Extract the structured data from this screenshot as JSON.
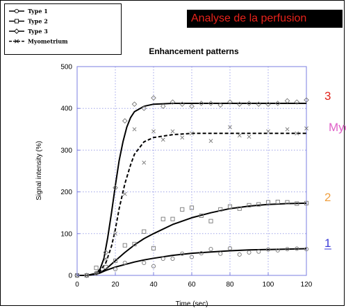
{
  "banner": {
    "text": "Analyse de la perfusion",
    "color": "#e8221b"
  },
  "chart_data": {
    "type": "line",
    "title": "Enhancement patterns",
    "xlabel": "Time (sec)",
    "ylabel": "Signal intensity (%)",
    "xlim": [
      0,
      120
    ],
    "ylim": [
      0,
      500
    ],
    "xticks": [
      0,
      20,
      40,
      60,
      80,
      100,
      120
    ],
    "yticks": [
      0,
      100,
      200,
      300,
      400,
      500
    ],
    "grid": true,
    "grid_color": "#9fa3e8",
    "legend_position": "top-left",
    "series": [
      {
        "name": "Type 1",
        "marker": "circle",
        "annotation": "1",
        "annotation_color": "#3a3ad8",
        "curve_x": [
          0,
          5,
          10,
          12,
          15,
          20,
          25,
          30,
          35,
          40,
          50,
          60,
          70,
          80,
          90,
          100,
          110,
          120
        ],
        "curve_y": [
          0,
          0,
          3,
          6,
          12,
          20,
          26,
          32,
          37,
          41,
          48,
          53,
          56,
          59,
          61,
          62,
          63,
          64
        ],
        "points_x": [
          0,
          5,
          10,
          20,
          25,
          35,
          40,
          45,
          50,
          55,
          60,
          65,
          70,
          75,
          80,
          85,
          90,
          95,
          100,
          105,
          110,
          115,
          120
        ],
        "points_y": [
          0,
          0,
          5,
          15,
          30,
          30,
          22,
          40,
          40,
          52,
          44,
          53,
          63,
          52,
          65,
          50,
          55,
          57,
          62,
          60,
          63,
          64,
          63
        ]
      },
      {
        "name": "Type 2",
        "marker": "square",
        "annotation": "2",
        "annotation_color": "#f0a040",
        "curve_x": [
          0,
          5,
          10,
          12,
          15,
          20,
          25,
          30,
          35,
          40,
          50,
          60,
          70,
          80,
          90,
          100,
          110,
          120
        ],
        "curve_y": [
          0,
          0,
          3,
          6,
          15,
          35,
          55,
          73,
          88,
          100,
          122,
          138,
          150,
          160,
          166,
          170,
          172,
          173
        ],
        "points_x": [
          0,
          5,
          10,
          15,
          20,
          25,
          30,
          35,
          40,
          45,
          50,
          55,
          60,
          65,
          70,
          75,
          80,
          85,
          90,
          95,
          100,
          105,
          110,
          115,
          120
        ],
        "points_y": [
          0,
          0,
          18,
          20,
          35,
          72,
          75,
          105,
          65,
          135,
          135,
          158,
          162,
          143,
          130,
          158,
          165,
          160,
          168,
          170,
          175,
          176,
          175,
          172,
          173
        ]
      },
      {
        "name": "Type 3",
        "marker": "diamond",
        "annotation": "3",
        "annotation_color": "#e0221b",
        "curve_x": [
          0,
          5,
          10,
          12,
          14,
          16,
          18,
          20,
          22,
          24,
          26,
          28,
          30,
          35,
          40,
          50,
          60,
          80,
          100,
          120
        ],
        "curve_y": [
          0,
          0,
          5,
          15,
          40,
          90,
          150,
          215,
          275,
          320,
          355,
          378,
          392,
          405,
          410,
          412,
          412,
          412,
          412,
          412
        ],
        "points_x": [
          0,
          5,
          10,
          15,
          20,
          25,
          30,
          35,
          40,
          45,
          50,
          55,
          60,
          65,
          70,
          75,
          80,
          85,
          90,
          95,
          100,
          105,
          110,
          115,
          120
        ],
        "points_y": [
          0,
          0,
          5,
          55,
          210,
          370,
          410,
          400,
          425,
          405,
          415,
          410,
          405,
          412,
          412,
          408,
          415,
          410,
          412,
          410,
          410,
          412,
          418,
          415,
          420
        ]
      },
      {
        "name": "Myometrium",
        "marker": "cross",
        "annotation": "Myo",
        "annotation_color": "#e060c8",
        "dashed": true,
        "curve_x": [
          0,
          5,
          10,
          12,
          15,
          18,
          20,
          22,
          25,
          28,
          30,
          35,
          40,
          50,
          60,
          70,
          80,
          100,
          120
        ],
        "curve_y": [
          0,
          0,
          3,
          10,
          30,
          70,
          110,
          160,
          220,
          265,
          290,
          320,
          330,
          337,
          340,
          340,
          340,
          340,
          340
        ],
        "points_x": [
          0,
          5,
          10,
          15,
          20,
          25,
          30,
          35,
          40,
          45,
          50,
          55,
          60,
          70,
          80,
          85,
          90,
          100,
          110,
          115,
          120
        ],
        "points_y": [
          0,
          0,
          5,
          40,
          100,
          195,
          350,
          270,
          345,
          325,
          345,
          330,
          340,
          322,
          355,
          335,
          332,
          345,
          350,
          340,
          352
        ]
      }
    ]
  }
}
